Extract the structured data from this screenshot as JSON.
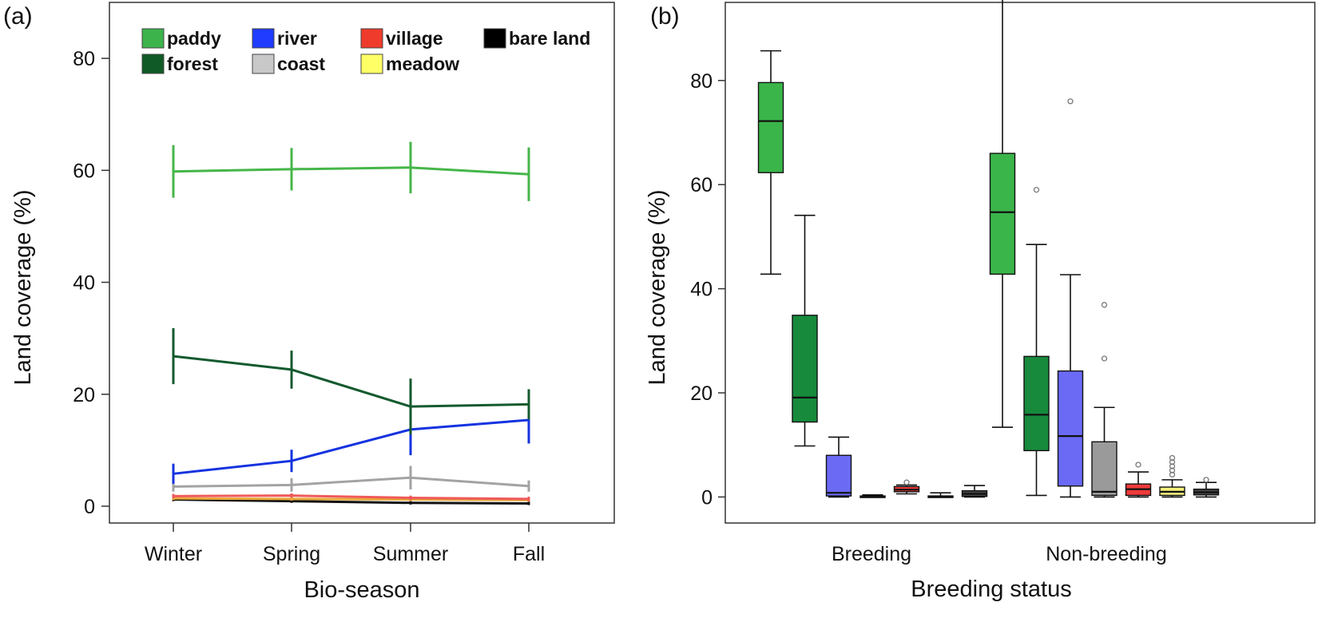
{
  "chart_data": [
    {
      "panel": "(a)",
      "type": "line",
      "xlabel": "Bio-season",
      "ylabel": "Land coverage (%)",
      "categories": [
        "Winter",
        "Spring",
        "Summer",
        "Fall"
      ],
      "ylim": [
        -3,
        90
      ],
      "yticks": [
        0,
        20,
        40,
        60,
        80
      ],
      "grid": false,
      "legend_position": "top",
      "legend": [
        {
          "name": "paddy",
          "color": "#3cb44b"
        },
        {
          "name": "river",
          "color": "#1f3cff"
        },
        {
          "name": "village",
          "color": "#ef3b2c"
        },
        {
          "name": "bare land",
          "color": "#000000"
        },
        {
          "name": "forest",
          "color": "#0f5a26"
        },
        {
          "name": "coast",
          "color": "#c8c8c8"
        },
        {
          "name": "meadow",
          "color": "#ffff66"
        }
      ],
      "series": [
        {
          "name": "paddy",
          "color": "#45b649",
          "values": [
            59.8,
            60.2,
            60.5,
            59.3
          ],
          "err": [
            4.7,
            3.8,
            4.6,
            4.8
          ]
        },
        {
          "name": "forest",
          "color": "#145a2e",
          "values": [
            26.8,
            24.4,
            17.8,
            18.2
          ],
          "err": [
            5.0,
            3.4,
            5.0,
            2.7
          ]
        },
        {
          "name": "river",
          "color": "#1533e0",
          "values": [
            5.8,
            8.1,
            13.7,
            15.4
          ],
          "err": [
            1.8,
            2.0,
            4.6,
            4.2
          ]
        },
        {
          "name": "coast",
          "color": "#a3a3a3",
          "values": [
            3.5,
            3.8,
            5.1,
            3.6
          ],
          "err": [
            0.9,
            1.2,
            2.1,
            1.0
          ]
        },
        {
          "name": "village",
          "color": "#ef5a5a",
          "values": [
            1.8,
            1.9,
            1.5,
            1.3
          ],
          "err": [
            0.4,
            0.4,
            0.4,
            0.4
          ]
        },
        {
          "name": "meadow",
          "color": "#e8a838",
          "values": [
            1.4,
            1.3,
            1.2,
            1.1
          ],
          "err": [
            0.3,
            0.3,
            0.3,
            0.3
          ]
        },
        {
          "name": "bare land",
          "color": "#111111",
          "values": [
            1.2,
            0.9,
            0.6,
            0.5
          ],
          "err": [
            0.3,
            0.3,
            0.3,
            0.3
          ]
        }
      ]
    },
    {
      "panel": "(b)",
      "type": "box",
      "xlabel": "Breeding status",
      "ylabel": "Land coverage (%)",
      "categories": [
        "Breeding",
        "Non-breeding"
      ],
      "ylim": [
        -5,
        95
      ],
      "yticks": [
        0,
        20,
        40,
        60,
        80
      ],
      "grid": false,
      "groups": [
        {
          "name": "Breeding",
          "boxes": [
            {
              "name": "paddy",
              "color": "#3ab54a",
              "whislo": 42.8,
              "q1": 62.3,
              "med": 72.2,
              "q3": 79.6,
              "whishi": 85.7,
              "fliers": []
            },
            {
              "name": "forest",
              "color": "#178a3c",
              "whislo": 9.8,
              "q1": 14.4,
              "med": 19.1,
              "q3": 34.9,
              "whishi": 54.1,
              "fliers": []
            },
            {
              "name": "river",
              "color": "#6a6af5",
              "whislo": 0.0,
              "q1": 0.2,
              "med": 0.8,
              "q3": 8.0,
              "whishi": 11.5,
              "fliers": []
            },
            {
              "name": "coast",
              "color": "#9a9a9a",
              "whislo": 0.0,
              "q1": 0.0,
              "med": 0.1,
              "q3": 0.2,
              "whishi": 0.4,
              "fliers": []
            },
            {
              "name": "village",
              "color": "#ef3b3b",
              "whislo": 0.6,
              "q1": 1.0,
              "med": 1.4,
              "q3": 2.0,
              "whishi": 2.3,
              "fliers": [
                2.8
              ]
            },
            {
              "name": "meadow",
              "color": "#f5f07a",
              "whislo": 0.0,
              "q1": 0.0,
              "med": 0.1,
              "q3": 0.2,
              "whishi": 0.8,
              "fliers": []
            },
            {
              "name": "bare land",
              "color": "#444444",
              "whislo": 0.0,
              "q1": 0.1,
              "med": 0.6,
              "q3": 1.2,
              "whishi": 2.2,
              "fliers": []
            }
          ]
        },
        {
          "name": "Non-breeding",
          "boxes": [
            {
              "name": "paddy",
              "color": "#3ab54a",
              "whislo": 13.4,
              "q1": 42.8,
              "med": 54.7,
              "q3": 66.0,
              "whishi": 95.7,
              "fliers": []
            },
            {
              "name": "forest",
              "color": "#178a3c",
              "whislo": 0.3,
              "q1": 8.9,
              "med": 15.8,
              "q3": 27.0,
              "whishi": 48.5,
              "fliers": [
                59.0
              ]
            },
            {
              "name": "river",
              "color": "#6a6af5",
              "whislo": 0.0,
              "q1": 2.1,
              "med": 11.7,
              "q3": 24.2,
              "whishi": 42.7,
              "fliers": [
                76.0
              ]
            },
            {
              "name": "coast",
              "color": "#9a9a9a",
              "whislo": 0.0,
              "q1": 0.3,
              "med": 1.0,
              "q3": 10.6,
              "whishi": 17.2,
              "fliers": [
                26.6,
                36.9
              ]
            },
            {
              "name": "village",
              "color": "#ef3b3b",
              "whislo": 0.0,
              "q1": 0.3,
              "med": 1.5,
              "q3": 2.5,
              "whishi": 4.8,
              "fliers": [
                6.2
              ]
            },
            {
              "name": "meadow",
              "color": "#f5f07a",
              "whislo": 0.0,
              "q1": 0.3,
              "med": 1.0,
              "q3": 1.9,
              "whishi": 3.3,
              "fliers": [
                4.3,
                5.1,
                5.9,
                6.7,
                7.5
              ]
            },
            {
              "name": "bare land",
              "color": "#444444",
              "whislo": 0.0,
              "q1": 0.4,
              "med": 0.9,
              "q3": 1.5,
              "whishi": 2.8,
              "fliers": [
                3.3
              ]
            }
          ]
        }
      ]
    }
  ]
}
